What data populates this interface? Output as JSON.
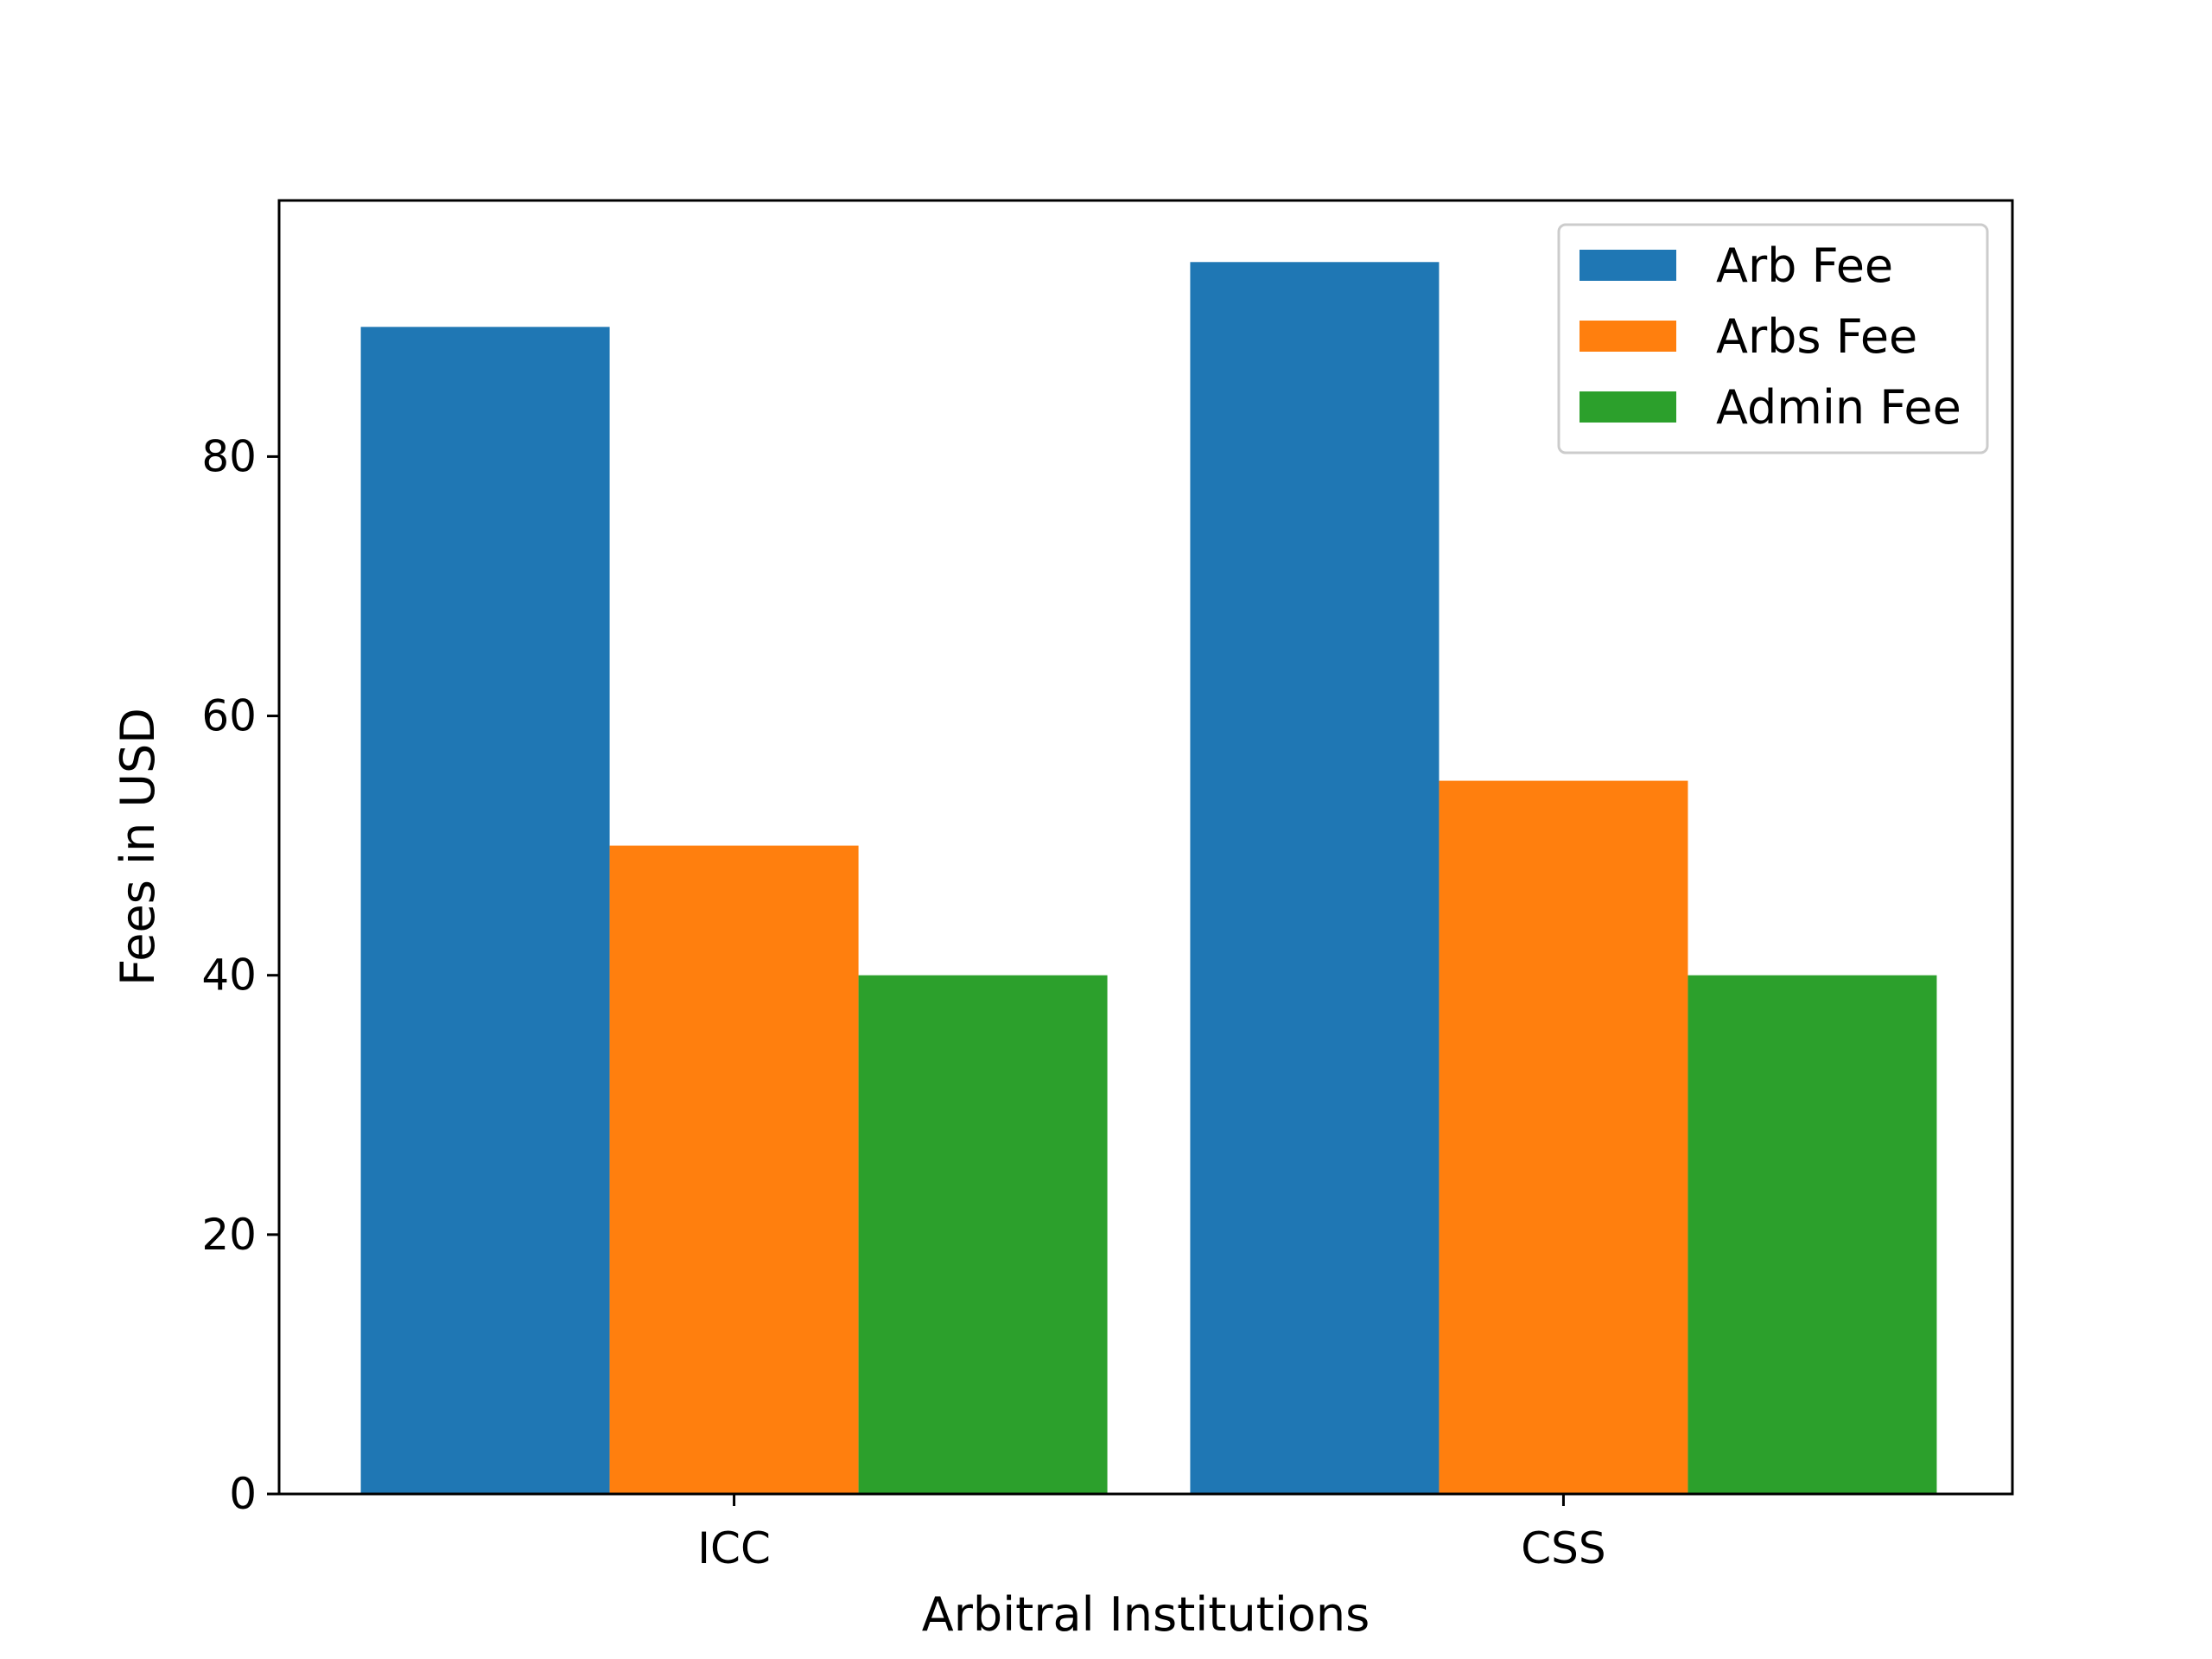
{
  "chart_data": {
    "type": "bar",
    "categories": [
      "ICC",
      "CSS"
    ],
    "series": [
      {
        "name": "Arb Fee",
        "values": [
          90,
          95
        ],
        "color": "#1f77b4"
      },
      {
        "name": "Arbs Fee",
        "values": [
          50,
          55
        ],
        "color": "#ff7f0e"
      },
      {
        "name": "Admin Fee",
        "values": [
          40,
          40
        ],
        "color": "#2ca02c"
      }
    ],
    "title": "",
    "xlabel": "Arbitral Institutions",
    "ylabel": "Fees in USD",
    "ylim": [
      0,
      100
    ],
    "yticks": [
      "0",
      "20",
      "40",
      "60",
      "80"
    ],
    "grid": false,
    "legend_position": "top-right"
  }
}
